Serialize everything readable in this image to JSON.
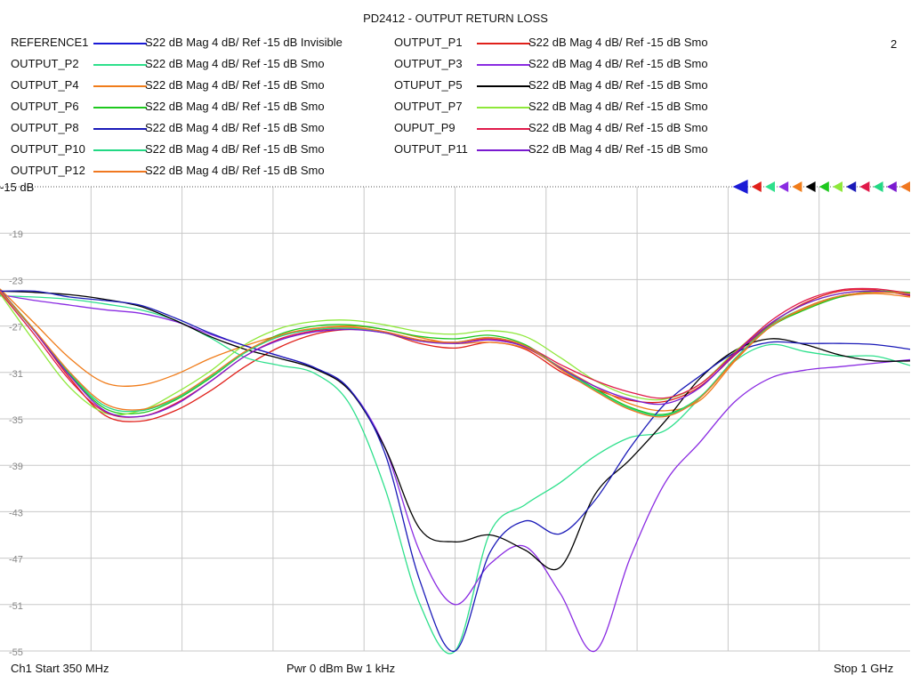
{
  "title": "PD2412 - OUTPUT RETURN LOSS",
  "trace_number": "2",
  "reference_label": "-15 dB",
  "footer": {
    "start": "Ch1  Start  350 MHz",
    "power": "Pwr  0 dBm  Bw  1 kHz",
    "stop": "Stop  1 GHz"
  },
  "legend": [
    {
      "name": "REFERENCE1",
      "format": "S22  dB Mag  4 dB/ Ref -15 dB  Invisible",
      "color": "#1a1ad6"
    },
    {
      "name": "OUTPUT_P1",
      "format": "S22  dB Mag  4 dB/ Ref -15 dB  Smo",
      "color": "#e0201a"
    },
    {
      "name": "OUTPUT_P2",
      "format": "S22  dB Mag  4 dB/ Ref -15 dB  Smo",
      "color": "#2ee08c"
    },
    {
      "name": "OUTPUT_P3",
      "format": "S22  dB Mag  4 dB/ Ref -15 dB  Smo",
      "color": "#8a2be2"
    },
    {
      "name": "OUTPUT_P4",
      "format": "S22  dB Mag  4 dB/ Ref -15 dB  Smo",
      "color": "#f07c1a"
    },
    {
      "name": "OTUPUT_P5",
      "format": "S22  dB Mag  4 dB/ Ref -15 dB  Smo",
      "color": "#000000"
    },
    {
      "name": "OUTPUT_P6",
      "format": "S22  dB Mag  4 dB/ Ref -15 dB  Smo",
      "color": "#1ec81e"
    },
    {
      "name": "OUTPUT_P7",
      "format": "S22  dB Mag  4 dB/ Ref -15 dB  Smo",
      "color": "#8ee83a"
    },
    {
      "name": "OUTPUT_P8",
      "format": "S22  dB Mag  4 dB/ Ref -15 dB  Smo",
      "color": "#1a1ab8"
    },
    {
      "name": "OUPUT_P9",
      "format": "S22  dB Mag  4 dB/ Ref -15 dB  Smo",
      "color": "#e01a4a"
    },
    {
      "name": "OUTPUT_P10",
      "format": "S22  dB Mag  4 dB/ Ref -15 dB  Smo",
      "color": "#22d884"
    },
    {
      "name": "OUTPUT_P11",
      "format": "S22  dB Mag  4 dB/ Ref -15 dB  Smo",
      "color": "#7a1ad0"
    },
    {
      "name": "OUTPUT_P12",
      "format": "S22  dB Mag  4 dB/ Ref -15 dB  Smo",
      "color": "#f07820"
    }
  ],
  "chart_data": {
    "type": "line",
    "title": "PD2412 - OUTPUT RETURN LOSS",
    "xlabel": "",
    "ylabel": "",
    "x_unit": "MHz",
    "xlim": [
      350,
      1000
    ],
    "ylim": [
      -55,
      -15
    ],
    "yticks": [
      -15,
      -19,
      -23,
      -27,
      -31,
      -35,
      -39,
      -43,
      -47,
      -51,
      -55
    ],
    "ytick_labels": [
      "-15 dB",
      "-19",
      "-23",
      "-27",
      "-31",
      "-35",
      "-39",
      "-43",
      "-47",
      "-51",
      "-55"
    ],
    "grid": true,
    "series": [
      {
        "name": "OUTPUT_P1",
        "color": "#e0201a",
        "x": [
          350,
          375,
          400,
          425,
          450,
          475,
          500,
          525,
          550,
          575,
          600,
          625,
          650,
          675,
          700,
          725,
          750,
          775,
          800,
          825,
          850,
          875,
          900,
          925,
          950,
          975,
          1000
        ],
        "y": [
          -23.9,
          -27.5,
          -31.5,
          -34.7,
          -35.2,
          -34.3,
          -32.6,
          -30.5,
          -28.8,
          -27.7,
          -27.3,
          -27.6,
          -28.5,
          -28.9,
          -28.4,
          -29.0,
          -30.9,
          -32.4,
          -33.4,
          -33.5,
          -32.2,
          -29.5,
          -26.9,
          -25.0,
          -24.0,
          -23.9,
          -24.4
        ]
      },
      {
        "name": "OUTPUT_P2",
        "color": "#2ee08c",
        "x": [
          350,
          375,
          400,
          425,
          450,
          475,
          500,
          525,
          550,
          575,
          600,
          625,
          650,
          675,
          700,
          725,
          750,
          775,
          800,
          825,
          850,
          875,
          900,
          925,
          950,
          975,
          1000
        ],
        "y": [
          -24.4,
          -24.5,
          -24.7,
          -25.1,
          -25.6,
          -26.5,
          -28.0,
          -29.7,
          -30.4,
          -31.1,
          -33.8,
          -41.0,
          -51.0,
          -55.0,
          -44.8,
          -42.4,
          -40.5,
          -38.2,
          -36.6,
          -36.0,
          -33.2,
          -30.0,
          -28.6,
          -29.2,
          -29.6,
          -29.6,
          -30.4
        ]
      },
      {
        "name": "OUTPUT_P3",
        "color": "#8a2be2",
        "x": [
          350,
          375,
          400,
          425,
          450,
          475,
          500,
          525,
          550,
          575,
          600,
          625,
          650,
          675,
          700,
          725,
          750,
          775,
          800,
          825,
          850,
          875,
          900,
          925,
          950,
          975,
          1000
        ],
        "y": [
          -24.3,
          -24.8,
          -25.2,
          -25.6,
          -25.9,
          -26.6,
          -27.7,
          -28.7,
          -29.6,
          -30.6,
          -32.5,
          -37.5,
          -46.5,
          -51.0,
          -47.5,
          -46.0,
          -50.0,
          -55.0,
          -47.0,
          -40.5,
          -37.0,
          -33.5,
          -31.5,
          -30.8,
          -30.5,
          -30.2,
          -29.9
        ]
      },
      {
        "name": "OUTPUT_P4",
        "color": "#f07c1a",
        "x": [
          350,
          375,
          400,
          425,
          450,
          475,
          500,
          525,
          550,
          575,
          600,
          625,
          650,
          675,
          700,
          725,
          750,
          775,
          800,
          825,
          850,
          875,
          900,
          925,
          950,
          975,
          1000
        ],
        "y": [
          -23.8,
          -26.8,
          -29.8,
          -31.9,
          -32.1,
          -31.2,
          -29.8,
          -28.7,
          -27.8,
          -27.2,
          -27.0,
          -27.3,
          -28.0,
          -28.5,
          -28.4,
          -28.9,
          -30.5,
          -32.2,
          -33.7,
          -34.3,
          -33.4,
          -30.0,
          -27.1,
          -25.5,
          -24.5,
          -24.2,
          -24.5
        ]
      },
      {
        "name": "OTUPUT_P5",
        "color": "#000000",
        "x": [
          350,
          375,
          400,
          425,
          450,
          475,
          500,
          525,
          550,
          575,
          600,
          625,
          650,
          675,
          700,
          725,
          750,
          775,
          800,
          825,
          850,
          875,
          900,
          925,
          950,
          975,
          1000
        ],
        "y": [
          -24.0,
          -24.1,
          -24.3,
          -24.7,
          -25.3,
          -26.5,
          -27.9,
          -29.0,
          -29.8,
          -30.7,
          -32.6,
          -37.5,
          -44.5,
          -45.6,
          -45.0,
          -46.3,
          -47.8,
          -41.5,
          -38.5,
          -35.2,
          -31.5,
          -29.1,
          -28.1,
          -28.6,
          -29.5,
          -30.0,
          -30.0
        ]
      },
      {
        "name": "OUTPUT_P6",
        "color": "#1ec81e",
        "x": [
          350,
          375,
          400,
          425,
          450,
          475,
          500,
          525,
          550,
          575,
          600,
          625,
          650,
          675,
          700,
          725,
          750,
          775,
          800,
          825,
          850,
          875,
          900,
          925,
          950,
          975,
          1000
        ],
        "y": [
          -23.9,
          -27.4,
          -31.2,
          -34.1,
          -34.5,
          -33.4,
          -31.5,
          -29.3,
          -27.7,
          -27.0,
          -26.9,
          -27.3,
          -27.9,
          -28.1,
          -27.8,
          -28.6,
          -30.6,
          -32.4,
          -34.0,
          -34.6,
          -33.1,
          -29.8,
          -27.1,
          -25.6,
          -24.5,
          -24.0,
          -24.1
        ]
      },
      {
        "name": "OUTPUT_P7",
        "color": "#8ee83a",
        "x": [
          350,
          375,
          400,
          425,
          450,
          475,
          500,
          525,
          550,
          575,
          600,
          625,
          650,
          675,
          700,
          725,
          750,
          775,
          800,
          825,
          850,
          875,
          900,
          925,
          950,
          975,
          1000
        ],
        "y": [
          -24.2,
          -28.4,
          -32.3,
          -34.5,
          -34.3,
          -32.8,
          -30.9,
          -28.6,
          -27.2,
          -26.6,
          -26.5,
          -26.9,
          -27.5,
          -27.7,
          -27.4,
          -27.9,
          -29.7,
          -31.7,
          -33.0,
          -33.3,
          -32.0,
          -29.2,
          -26.8,
          -25.1,
          -24.2,
          -24.0,
          -24.3
        ]
      },
      {
        "name": "OUTPUT_P8",
        "color": "#1a1ab8",
        "x": [
          350,
          375,
          400,
          425,
          450,
          475,
          500,
          525,
          550,
          575,
          600,
          625,
          650,
          675,
          700,
          725,
          750,
          775,
          800,
          825,
          850,
          875,
          900,
          925,
          950,
          975,
          1000
        ],
        "y": [
          -24.0,
          -24.0,
          -24.5,
          -24.8,
          -25.2,
          -26.3,
          -27.6,
          -28.7,
          -29.6,
          -30.6,
          -32.5,
          -38.0,
          -49.0,
          -55.0,
          -46.5,
          -43.8,
          -44.9,
          -42.0,
          -37.5,
          -33.7,
          -31.3,
          -29.3,
          -28.4,
          -28.5,
          -28.5,
          -28.6,
          -29.0
        ]
      },
      {
        "name": "OUPUT_P9",
        "color": "#e01a4a",
        "x": [
          350,
          375,
          400,
          425,
          450,
          475,
          500,
          525,
          550,
          575,
          600,
          625,
          650,
          675,
          700,
          725,
          750,
          775,
          800,
          825,
          850,
          875,
          900,
          925,
          950,
          975,
          1000
        ],
        "y": [
          -24.1,
          -27.8,
          -31.7,
          -34.4,
          -34.8,
          -33.7,
          -31.8,
          -29.6,
          -28.1,
          -27.4,
          -27.2,
          -27.5,
          -28.2,
          -28.4,
          -28.1,
          -28.7,
          -30.3,
          -31.7,
          -32.7,
          -33.2,
          -32.0,
          -29.3,
          -26.6,
          -24.8,
          -23.9,
          -23.8,
          -24.2
        ]
      },
      {
        "name": "OUTPUT_P10",
        "color": "#22d884",
        "x": [
          350,
          375,
          400,
          425,
          450,
          475,
          500,
          525,
          550,
          575,
          600,
          625,
          650,
          675,
          700,
          725,
          750,
          775,
          800,
          825,
          850,
          875,
          900,
          925,
          950,
          975,
          1000
        ],
        "y": [
          -24.0,
          -27.5,
          -31.1,
          -33.9,
          -34.3,
          -33.3,
          -31.4,
          -29.3,
          -27.9,
          -27.3,
          -27.2,
          -27.6,
          -28.3,
          -28.4,
          -28.0,
          -28.7,
          -30.6,
          -32.5,
          -34.1,
          -34.7,
          -33.1,
          -29.8,
          -27.0,
          -25.4,
          -24.4,
          -24.1,
          -24.2
        ]
      },
      {
        "name": "OUTPUT_P11",
        "color": "#7a1ad0",
        "x": [
          350,
          375,
          400,
          425,
          450,
          475,
          500,
          525,
          550,
          575,
          600,
          625,
          650,
          675,
          700,
          725,
          750,
          775,
          800,
          825,
          850,
          875,
          900,
          925,
          950,
          975,
          1000
        ],
        "y": [
          -23.9,
          -27.5,
          -31.3,
          -34.3,
          -34.8,
          -33.8,
          -31.8,
          -29.6,
          -28.2,
          -27.5,
          -27.3,
          -27.6,
          -28.3,
          -28.5,
          -28.2,
          -28.8,
          -30.6,
          -32.2,
          -33.3,
          -33.7,
          -32.3,
          -29.4,
          -26.8,
          -25.1,
          -24.2,
          -24.0,
          -24.3
        ]
      },
      {
        "name": "OUTPUT_P12",
        "color": "#f07820",
        "x": [
          350,
          375,
          400,
          425,
          450,
          475,
          500,
          525,
          550,
          575,
          600,
          625,
          650,
          675,
          700,
          725,
          750,
          775,
          800,
          825,
          850,
          875,
          900,
          925,
          950,
          975,
          1000
        ],
        "y": [
          -24.0,
          -27.4,
          -31.0,
          -33.7,
          -34.2,
          -33.2,
          -31.3,
          -29.2,
          -27.8,
          -27.2,
          -27.1,
          -27.5,
          -28.2,
          -28.4,
          -28.0,
          -28.7,
          -30.7,
          -32.6,
          -34.2,
          -34.8,
          -33.2,
          -29.9,
          -27.1,
          -25.4,
          -24.4,
          -24.1,
          -24.2
        ]
      }
    ]
  }
}
